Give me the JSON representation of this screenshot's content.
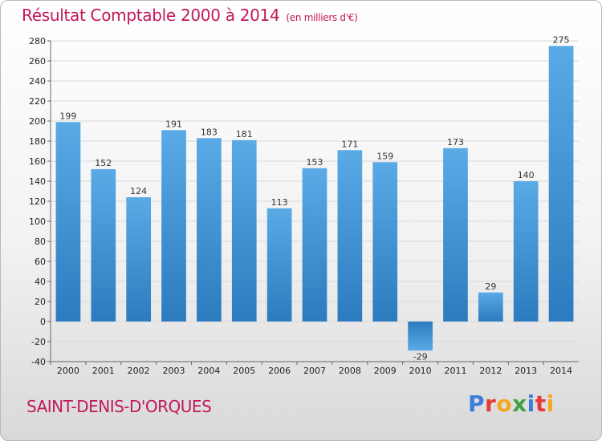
{
  "header": {
    "title": "Résultat Comptable 2000 à 2014",
    "subtitle": "(en milliers d'€)"
  },
  "footer": {
    "commune": "SAINT-DENIS-D'ORQUES",
    "logo_letters": [
      "P",
      "r",
      "o",
      "x",
      "i",
      "t",
      "i"
    ],
    "logo_colors": [
      "#3b7dd8",
      "#e53935",
      "#f5a623",
      "#43a047",
      "#3b7dd8",
      "#e53935",
      "#f5a623"
    ]
  },
  "colors": {
    "title": "#c2185b",
    "bar_light": "#5aaae6",
    "bar_dark": "#2c7bbf",
    "grid": "#d8d8d8"
  },
  "chart_data": {
    "type": "bar",
    "title": "Résultat Comptable 2000 à 2014",
    "xlabel": "",
    "ylabel": "en milliers d'€",
    "categories": [
      "2000",
      "2001",
      "2002",
      "2003",
      "2004",
      "2005",
      "2006",
      "2007",
      "2008",
      "2009",
      "2010",
      "2011",
      "2012",
      "2013",
      "2014"
    ],
    "values": [
      199,
      152,
      124,
      191,
      183,
      181,
      113,
      153,
      171,
      159,
      -29,
      173,
      29,
      140,
      275
    ],
    "ylim": [
      -40,
      280
    ],
    "yticks": [
      -40,
      -20,
      0,
      20,
      40,
      60,
      80,
      100,
      120,
      140,
      160,
      180,
      200,
      220,
      240,
      260,
      280
    ],
    "grid": true
  }
}
